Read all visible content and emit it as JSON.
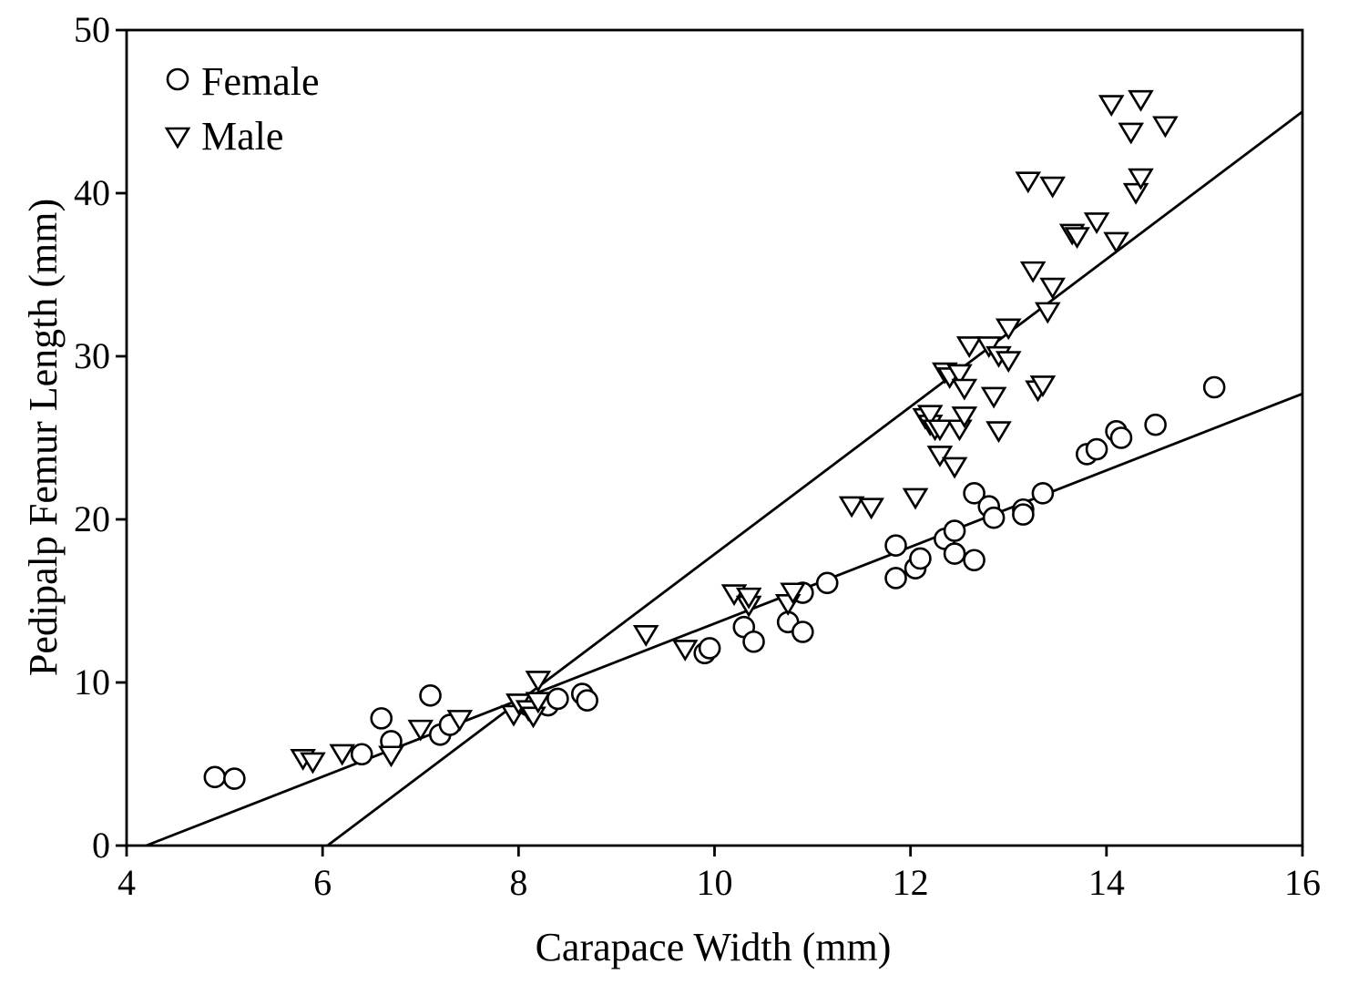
{
  "chart_data": {
    "type": "scatter",
    "title": "",
    "xlabel": "Carapace Width (mm)",
    "ylabel": "Pedipalp Femur Length (mm)",
    "xlim": [
      4,
      16
    ],
    "ylim": [
      0,
      50
    ],
    "xticks": [
      "4",
      "6",
      "8",
      "10",
      "12",
      "14",
      "16"
    ],
    "yticks": [
      "0",
      "10",
      "20",
      "30",
      "40",
      "50"
    ],
    "grid": false,
    "legend_position": "top-left",
    "series": [
      {
        "name": "Female",
        "marker": "circle",
        "points": [
          [
            4.9,
            4.2
          ],
          [
            5.1,
            4.1
          ],
          [
            6.4,
            5.6
          ],
          [
            6.6,
            7.8
          ],
          [
            6.7,
            6.4
          ],
          [
            7.1,
            9.2
          ],
          [
            7.2,
            6.8
          ],
          [
            7.3,
            7.4
          ],
          [
            8.1,
            8.6
          ],
          [
            8.3,
            8.6
          ],
          [
            8.4,
            9.0
          ],
          [
            8.65,
            9.3
          ],
          [
            8.7,
            8.9
          ],
          [
            9.9,
            11.8
          ],
          [
            9.95,
            12.1
          ],
          [
            10.3,
            13.4
          ],
          [
            10.4,
            12.5
          ],
          [
            10.75,
            13.7
          ],
          [
            10.9,
            13.1
          ],
          [
            10.9,
            15.5
          ],
          [
            11.15,
            16.1
          ],
          [
            11.85,
            18.4
          ],
          [
            11.85,
            16.4
          ],
          [
            12.05,
            17.0
          ],
          [
            12.1,
            17.6
          ],
          [
            12.35,
            18.8
          ],
          [
            12.45,
            17.9
          ],
          [
            12.45,
            19.3
          ],
          [
            12.65,
            17.5
          ],
          [
            12.65,
            21.6
          ],
          [
            12.8,
            20.8
          ],
          [
            12.85,
            20.1
          ],
          [
            13.15,
            20.6
          ],
          [
            13.15,
            20.3
          ],
          [
            13.35,
            21.6
          ],
          [
            13.8,
            24.0
          ],
          [
            13.9,
            24.3
          ],
          [
            14.1,
            25.4
          ],
          [
            14.15,
            25.0
          ],
          [
            14.5,
            25.8
          ],
          [
            15.1,
            28.1
          ]
        ]
      },
      {
        "name": "Male",
        "marker": "triangle-down",
        "points": [
          [
            5.8,
            5.4
          ],
          [
            5.9,
            5.2
          ],
          [
            6.2,
            5.7
          ],
          [
            6.7,
            5.6
          ],
          [
            7.0,
            7.2
          ],
          [
            7.4,
            7.8
          ],
          [
            7.95,
            8.1
          ],
          [
            8.0,
            8.8
          ],
          [
            8.1,
            8.4
          ],
          [
            8.15,
            8.0
          ],
          [
            8.2,
            8.9
          ],
          [
            8.2,
            10.2
          ],
          [
            9.3,
            13.0
          ],
          [
            9.7,
            12.1
          ],
          [
            10.2,
            15.5
          ],
          [
            10.35,
            14.8
          ],
          [
            10.35,
            15.3
          ],
          [
            10.75,
            14.9
          ],
          [
            10.8,
            15.6
          ],
          [
            11.4,
            20.9
          ],
          [
            11.6,
            20.8
          ],
          [
            12.05,
            21.4
          ],
          [
            12.15,
            26.3
          ],
          [
            12.2,
            25.9
          ],
          [
            12.2,
            26.5
          ],
          [
            12.25,
            25.6
          ],
          [
            12.3,
            24.0
          ],
          [
            12.3,
            25.6
          ],
          [
            12.35,
            29.1
          ],
          [
            12.4,
            28.8
          ],
          [
            12.45,
            23.3
          ],
          [
            12.5,
            25.6
          ],
          [
            12.5,
            29.0
          ],
          [
            12.55,
            28.1
          ],
          [
            12.55,
            26.4
          ],
          [
            12.6,
            30.7
          ],
          [
            12.8,
            30.7
          ],
          [
            12.85,
            27.6
          ],
          [
            12.9,
            25.5
          ],
          [
            12.9,
            30.1
          ],
          [
            13.0,
            31.8
          ],
          [
            13.0,
            29.8
          ],
          [
            13.2,
            40.8
          ],
          [
            13.25,
            35.3
          ],
          [
            13.3,
            28.0
          ],
          [
            13.35,
            28.3
          ],
          [
            13.4,
            32.8
          ],
          [
            13.45,
            40.5
          ],
          [
            13.45,
            34.3
          ],
          [
            13.65,
            37.6
          ],
          [
            13.7,
            37.4
          ],
          [
            13.9,
            38.3
          ],
          [
            14.05,
            45.5
          ],
          [
            14.1,
            37.1
          ],
          [
            14.25,
            43.8
          ],
          [
            14.3,
            40.1
          ],
          [
            14.35,
            45.8
          ],
          [
            14.35,
            41.0
          ],
          [
            14.6,
            44.2
          ]
        ]
      }
    ],
    "fit_lines": [
      {
        "series": "Female",
        "from": [
          4.2,
          0
        ],
        "to": [
          16,
          27.7
        ]
      },
      {
        "series": "Male",
        "from": [
          6.05,
          0
        ],
        "to": [
          16,
          45.0
        ]
      }
    ]
  }
}
